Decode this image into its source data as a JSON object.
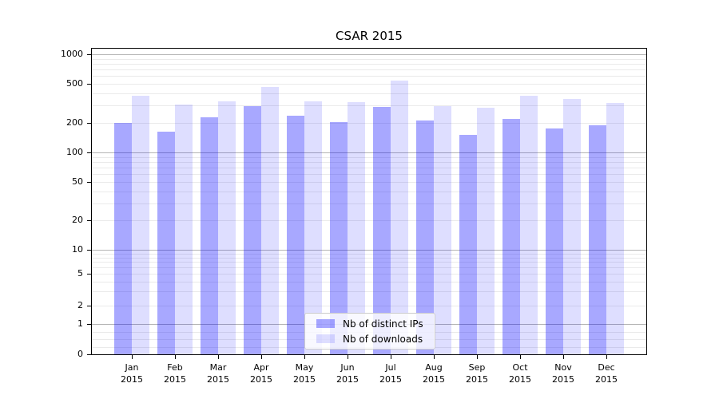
{
  "chart_data": {
    "type": "bar",
    "title": "CSAR 2015",
    "yscale": "symlog",
    "ylim": [
      0,
      1000
    ],
    "grid": true,
    "categories": [
      "Jan",
      "Feb",
      "Mar",
      "Apr",
      "May",
      "Jun",
      "Jul",
      "Aug",
      "Sep",
      "Oct",
      "Nov",
      "Dec"
    ],
    "year_label": "2015",
    "series": [
      {
        "name": "Nb of distinct IPs",
        "color": "rgba(0,0,255,0.34)",
        "values": [
          200,
          163,
          230,
          295,
          237,
          204,
          291,
          210,
          150,
          220,
          175,
          189
        ]
      },
      {
        "name": "Nb of downloads",
        "color": "rgba(0,0,255,0.13)",
        "values": [
          375,
          307,
          333,
          462,
          333,
          327,
          540,
          296,
          285,
          378,
          348,
          317
        ]
      }
    ],
    "y_ticks": [
      1000,
      500,
      200,
      100,
      50,
      20,
      10,
      5,
      2,
      1,
      0
    ],
    "legend": {
      "position": "lower center",
      "entries": [
        "Nb of distinct IPs",
        "Nb of downloads"
      ]
    }
  }
}
